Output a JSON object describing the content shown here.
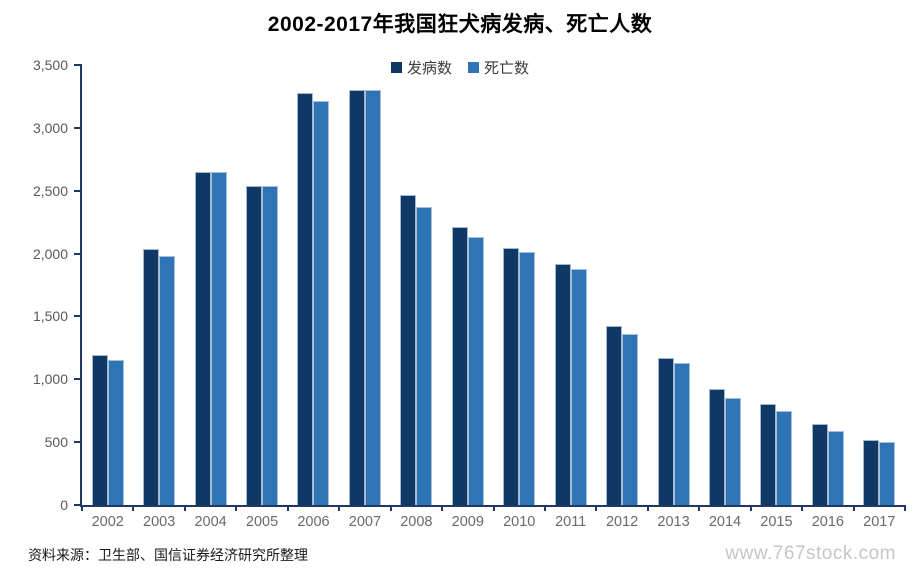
{
  "page": {
    "title": "2002-2017年我国狂犬病发病、死亡人数",
    "source_note": "资料来源：卫生部、国信证券经济研究所整理",
    "watermark": "www.767stock.com"
  },
  "colors": {
    "series_incidence": "#0F3864",
    "series_deaths": "#2F74B5",
    "axis": "#1F3864",
    "tick_label": "#595959",
    "watermark": "#C6C6C6"
  },
  "chart_data": {
    "type": "bar",
    "title": "2002-2017年我国狂犬病发病、死亡人数",
    "categories": [
      "2002",
      "2003",
      "2004",
      "2005",
      "2006",
      "2007",
      "2008",
      "2009",
      "2010",
      "2011",
      "2012",
      "2013",
      "2014",
      "2015",
      "2016",
      "2017"
    ],
    "series": [
      {
        "name": "发病数",
        "color": "#0F3864",
        "values": [
          1191,
          2037,
          2651,
          2537,
          3279,
          3300,
          2465,
          2213,
          2048,
          1917,
          1425,
          1172,
          924,
          801,
          644,
          516
        ]
      },
      {
        "name": "死亡数",
        "color": "#2F74B5",
        "values": [
          1156,
          1980,
          2651,
          2537,
          3215,
          3300,
          2373,
          2131,
          2014,
          1879,
          1361,
          1128,
          854,
          744,
          592,
          502
        ]
      }
    ],
    "xlabel": "",
    "ylabel": "",
    "ylim": [
      0,
      3500
    ],
    "y_ticks": [
      0,
      500,
      1000,
      1500,
      2000,
      2500,
      3000,
      3500
    ],
    "y_tick_labels": [
      "0",
      "500",
      "1,000",
      "1,500",
      "2,000",
      "2,500",
      "3,000",
      "3,500"
    ],
    "grid": false,
    "legend_position": "top-center"
  }
}
